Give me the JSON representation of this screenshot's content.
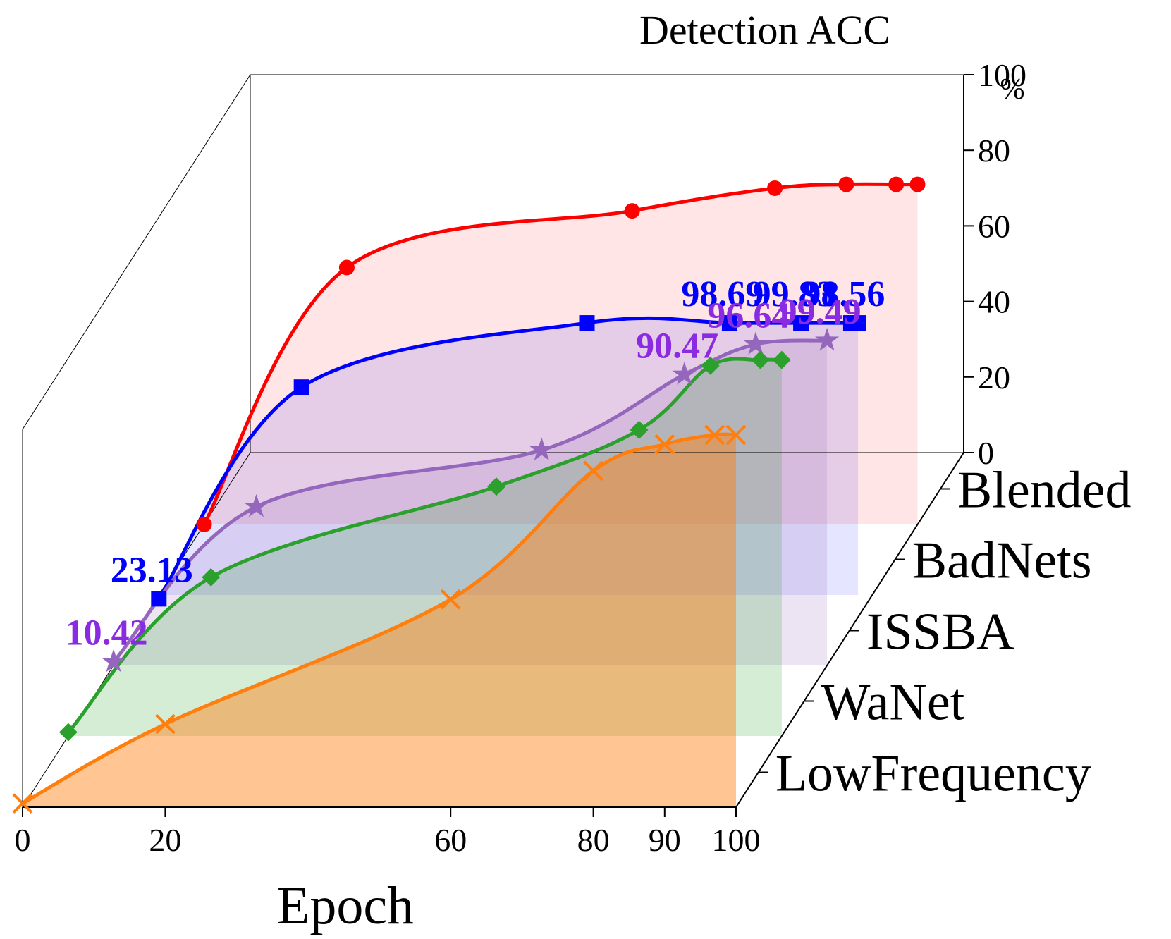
{
  "chart_data": {
    "type": "line",
    "title": "",
    "xlabel": "Epoch",
    "zlabel": "Detection ACC",
    "zunit": "%",
    "x_ticks": [
      "0",
      "20",
      "60",
      "80",
      "90",
      "100"
    ],
    "x_tick_values": [
      0,
      20,
      60,
      80,
      90,
      100
    ],
    "z_ticks": [
      "0",
      "20",
      "40",
      "60",
      "80",
      "100"
    ],
    "z_tick_values": [
      0,
      20,
      40,
      60,
      80,
      100
    ],
    "xlim": [
      0,
      100
    ],
    "zlim": [
      0,
      100
    ],
    "depth_categories": [
      "LowFrequency",
      "WaNet",
      "ISSBA",
      "BadNets",
      "Blended"
    ],
    "grid": false,
    "series": [
      {
        "name": "LowFrequency",
        "color": "#ff7f0e",
        "marker": "x",
        "x": [
          0,
          20,
          60,
          80,
          90,
          97,
          100
        ],
        "y": [
          1,
          22,
          55,
          89,
          96,
          98.5,
          98.5
        ],
        "labels": []
      },
      {
        "name": "WaNet",
        "color": "#2ca02c",
        "marker": "diamond",
        "x": [
          0,
          20,
          60,
          80,
          90,
          97,
          100
        ],
        "y": [
          1,
          42,
          66,
          81,
          98,
          99.5,
          99.5
        ],
        "labels": []
      },
      {
        "name": "ISSBA",
        "color": "#9467bd",
        "marker": "star",
        "x": [
          0,
          20,
          60,
          80,
          90,
          100
        ],
        "y": [
          1,
          42,
          57,
          77,
          85,
          86
        ],
        "labels": [
          {
            "x": 0,
            "y": 1,
            "text": "10.42"
          },
          {
            "x": 80,
            "y": 77,
            "text": "90.47"
          },
          {
            "x": 90,
            "y": 85,
            "text": "96.64"
          },
          {
            "x": 100,
            "y": 86,
            "text": "99.49"
          }
        ],
        "label_color": "#8a2be2"
      },
      {
        "name": "BadNets",
        "color": "#0000ff",
        "marker": "square",
        "x": [
          0,
          20,
          60,
          80,
          90,
          97,
          98
        ],
        "y": [
          -1,
          55,
          72,
          72,
          72,
          72,
          72
        ],
        "labels": [
          {
            "x": 0,
            "y": -1,
            "text": "23.13"
          },
          {
            "x": 80,
            "y": 72,
            "text": "98.69"
          },
          {
            "x": 90,
            "y": 72,
            "text": "99.83"
          },
          {
            "x": 97,
            "y": 72,
            "text": "98.56"
          }
        ],
        "label_color": "#0000ff"
      },
      {
        "name": "Blended",
        "color": "#ff0000",
        "marker": "circle",
        "x": [
          0,
          20,
          60,
          80,
          90,
          97,
          100
        ],
        "y": [
          0,
          68,
          83,
          89,
          90,
          90,
          90
        ],
        "labels": []
      }
    ]
  }
}
